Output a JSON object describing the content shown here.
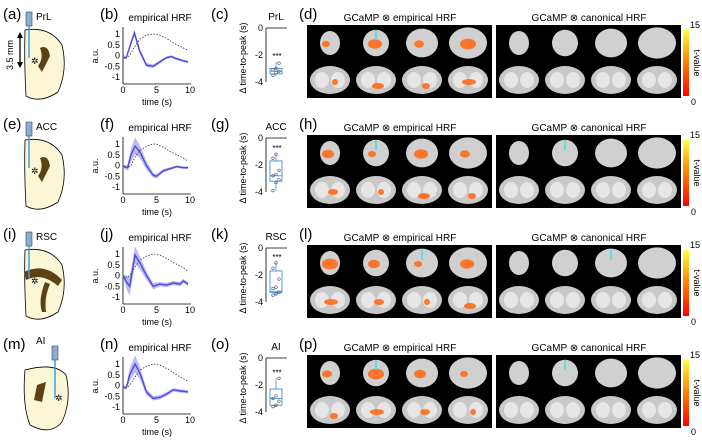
{
  "colors": {
    "hrf": "#4a4ae0",
    "hrf_band": "#aaaaf0",
    "box": "#4a90c0",
    "brain_fill": "#fbf6d6",
    "ventricle": "#5c4214",
    "probe": "#3aa0e0",
    "site": "#33cc55",
    "activation": "#ff6a1a",
    "fiber": "#40e0e0"
  },
  "colorbar": {
    "max_label": "15",
    "min_label": "0",
    "label": "t-value",
    "colors": [
      "#ff0000",
      "#ff8000",
      "#ffff40"
    ]
  },
  "montage_titles": {
    "empirical": "GCaMP ⊗ empirical HRF",
    "canonical": "GCaMP ⊗ canonical HRF"
  },
  "scale_label": "3.5 mm",
  "rows": [
    {
      "region": "PrL",
      "labels": [
        "(a)",
        "(b)",
        "(c)",
        "(d)"
      ],
      "hrf_title": "empirical HRF",
      "ylabel": "a.u.",
      "xlabel": "time (s)",
      "box_ylabel": "Δ time-to-peak (s)",
      "significance": "***",
      "chart_data": {
        "type": "line",
        "xlim": [
          0,
          10
        ],
        "ylim": [
          -1.2,
          1.5
        ],
        "xticks": [
          "0",
          "5",
          "10"
        ],
        "yticks": [
          "1",
          "0.5",
          "0",
          "-0.5",
          "-1"
        ],
        "x": [
          0,
          0.5,
          1,
          1.7,
          2.5,
          3.5,
          4.5,
          5.5,
          6.5,
          7.2,
          8,
          9,
          9.7
        ],
        "empirical": [
          -0.1,
          -0.1,
          0.4,
          1.05,
          0.2,
          -0.45,
          -0.5,
          -0.3,
          -0.1,
          -0.05,
          -0.15,
          -0.25,
          -0.3
        ],
        "sem": [
          0.05,
          0.08,
          0.12,
          0.15,
          0.12,
          0.1,
          0.08,
          0.08,
          0.06,
          0.06,
          0.06,
          0.06,
          0.06
        ],
        "canonical": [
          0,
          -0.1,
          0,
          0.4,
          0.75,
          0.95,
          1.0,
          0.95,
          0.8,
          0.65,
          0.5,
          0.35,
          0.25
        ]
      },
      "box_data": {
        "type": "box",
        "ylim": [
          -4,
          0
        ],
        "yticks": [
          "0",
          "-2",
          "-4"
        ],
        "whisker_low": -3.6,
        "q1": -3.4,
        "median": -3.2,
        "q3": -3.0,
        "whisker_high": -2.5,
        "points": [
          -3.5,
          -3.3,
          -3.2,
          -3.1,
          -3.0,
          -2.6
        ]
      }
    },
    {
      "region": "ACC",
      "labels": [
        "(e)",
        "(f)",
        "(g)",
        "(h)"
      ],
      "hrf_title": "empirical HRF",
      "ylabel": "a.u.",
      "xlabel": "time (s)",
      "box_ylabel": "Δ time-to-peak (s)",
      "significance": "***",
      "chart_data": {
        "type": "line",
        "xlim": [
          0,
          10
        ],
        "ylim": [
          -1.2,
          1.5
        ],
        "xticks": [
          "0",
          "5",
          "10"
        ],
        "yticks": [
          "1",
          "0.5",
          "0",
          "-0.5",
          "-1"
        ],
        "x": [
          0,
          0.7,
          1.2,
          1.8,
          2.5,
          3.5,
          4.5,
          5,
          6,
          7,
          8,
          9,
          9.7
        ],
        "empirical": [
          -0.05,
          -0.1,
          0.5,
          0.9,
          0.65,
          0.0,
          -0.45,
          -0.5,
          -0.25,
          -0.15,
          -0.05,
          -0.1,
          -0.1
        ],
        "sem": [
          0.05,
          0.15,
          0.3,
          0.4,
          0.3,
          0.2,
          0.12,
          0.1,
          0.08,
          0.06,
          0.06,
          0.06,
          0.06
        ],
        "canonical": [
          0,
          -0.1,
          0,
          0.4,
          0.7,
          0.9,
          1.0,
          1.0,
          0.85,
          0.65,
          0.5,
          0.35,
          0.2
        ]
      },
      "box_data": {
        "type": "box",
        "ylim": [
          -4,
          0
        ],
        "yticks": [
          "0",
          "-2",
          "-4"
        ],
        "whisker_low": -3.9,
        "q1": -3.2,
        "median": -2.8,
        "q3": -1.7,
        "whisker_high": -1.2,
        "points": [
          -3.9,
          -3.3,
          -3.1,
          -2.8,
          -2.7,
          -2.4,
          -1.5,
          -1.2
        ]
      }
    },
    {
      "region": "RSC",
      "labels": [
        "(i)",
        "(j)",
        "(k)",
        "(l)"
      ],
      "hrf_title": "empirical HRF",
      "ylabel": "a.u.",
      "xlabel": "time (s)",
      "box_ylabel": "Δ time-to-peak (s)",
      "significance": "***",
      "chart_data": {
        "type": "line",
        "xlim": [
          0,
          10
        ],
        "ylim": [
          -1.2,
          1.5
        ],
        "xticks": [
          "0",
          "5",
          "10"
        ],
        "yticks": [
          "1",
          "0.5",
          "0",
          "-0.5",
          "-1"
        ],
        "x": [
          0,
          0.5,
          1,
          1.8,
          2.5,
          3.5,
          4.5,
          5.5,
          6.5,
          7.5,
          8.5,
          9,
          9.7
        ],
        "empirical": [
          0,
          -0.3,
          -0.5,
          0.95,
          0.6,
          0.0,
          -0.5,
          -0.4,
          -0.45,
          -0.35,
          -0.4,
          -0.25,
          -0.4
        ],
        "sem": [
          0.05,
          0.3,
          0.45,
          0.4,
          0.3,
          0.2,
          0.15,
          0.1,
          0.1,
          0.1,
          0.1,
          0.1,
          0.1
        ],
        "canonical": [
          0,
          -0.1,
          0,
          0.4,
          0.7,
          0.9,
          1.0,
          0.95,
          0.8,
          0.6,
          0.45,
          0.35,
          0.2
        ]
      },
      "box_data": {
        "type": "box",
        "ylim": [
          -4,
          0
        ],
        "yticks": [
          "0",
          "-2",
          "-4"
        ],
        "whisker_low": -3.5,
        "q1": -3.3,
        "median": -3.2,
        "q3": -1.7,
        "whisker_high": -1.1,
        "points": [
          -3.5,
          -3.4,
          -3.3,
          -3.0,
          -2.9,
          -2.3,
          -1.5,
          -1.1
        ]
      }
    },
    {
      "region": "AI",
      "labels": [
        "(m)",
        "(n)",
        "(o)",
        "(p)"
      ],
      "hrf_title": "empirical HRF",
      "ylabel": "a.u.",
      "xlabel": "time (s)",
      "box_ylabel": "Δ time-to-peak (s)",
      "significance": "***",
      "chart_data": {
        "type": "line",
        "xlim": [
          0,
          10
        ],
        "ylim": [
          -1.2,
          1.5
        ],
        "xticks": [
          "0",
          "5",
          "10"
        ],
        "yticks": [
          "1",
          "0.5",
          "0",
          "-0.5",
          "-1"
        ],
        "x": [
          0,
          0.5,
          1,
          1.8,
          2.5,
          3.5,
          4.5,
          5.5,
          6.5,
          7.5,
          8.5,
          9.7
        ],
        "empirical": [
          -0.1,
          -0.1,
          0.5,
          1.0,
          0.6,
          -0.3,
          -0.6,
          -0.55,
          -0.4,
          -0.2,
          -0.25,
          -0.3
        ],
        "sem": [
          0.05,
          0.1,
          0.3,
          0.4,
          0.3,
          0.15,
          0.1,
          0.1,
          0.1,
          0.08,
          0.08,
          0.08
        ],
        "canonical": [
          0,
          -0.1,
          0,
          0.4,
          0.7,
          0.9,
          1.0,
          0.95,
          0.8,
          0.6,
          0.4,
          0.2
        ]
      },
      "box_data": {
        "type": "box",
        "ylim": [
          -4,
          0
        ],
        "yticks": [
          "0",
          "-2",
          "-4"
        ],
        "whisker_low": -3.6,
        "q1": -3.5,
        "median": -3.0,
        "q3": -2.3,
        "whisker_high": -1.5,
        "points": [
          -3.6,
          -3.5,
          -3.2,
          -3.0,
          -2.8,
          -1.5
        ]
      }
    }
  ]
}
